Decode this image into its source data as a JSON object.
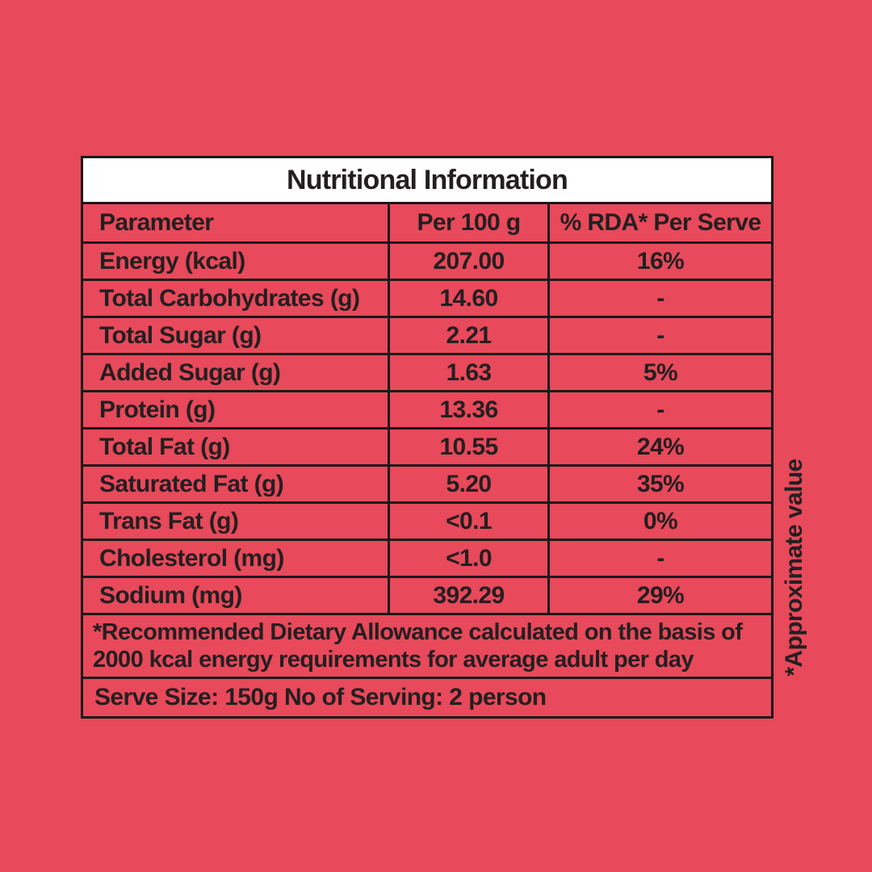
{
  "page": {
    "background_color": "#E8495B",
    "text_color": "#231F20",
    "border_color": "#1A1A1A",
    "title_background_color": "#FFFFFF"
  },
  "table": {
    "title": "Nutritional Information",
    "columns": [
      "Parameter",
      "Per 100 g",
      "% RDA* Per Serve"
    ],
    "rows": [
      {
        "parameter": "Energy (kcal)",
        "per_100g": "207.00",
        "rda_per_serve": "16%"
      },
      {
        "parameter": "Total Carbohydrates (g)",
        "per_100g": "14.60",
        "rda_per_serve": "-"
      },
      {
        "parameter": "Total Sugar (g)",
        "per_100g": "2.21",
        "rda_per_serve": "-"
      },
      {
        "parameter": "Added Sugar (g)",
        "per_100g": "1.63",
        "rda_per_serve": "5%"
      },
      {
        "parameter": "Protein (g)",
        "per_100g": "13.36",
        "rda_per_serve": "-"
      },
      {
        "parameter": "Total Fat (g)",
        "per_100g": "10.55",
        "rda_per_serve": "24%"
      },
      {
        "parameter": "Saturated Fat (g)",
        "per_100g": "5.20",
        "rda_per_serve": "35%"
      },
      {
        "parameter": "Trans Fat (g)",
        "per_100g": "<0.1",
        "rda_per_serve": "0%"
      },
      {
        "parameter": "Cholesterol (mg)",
        "per_100g": "<1.0",
        "rda_per_serve": "-"
      },
      {
        "parameter": "Sodium (mg)",
        "per_100g": "392.29",
        "rda_per_serve": "29%"
      }
    ],
    "footnote": "*Recommended Dietary Allowance calculated on the basis of 2000 kcal energy requirements for average  adult per day",
    "serve_info": "Serve Size: 150g No of Serving: 2 person"
  },
  "side_note": "*Approximate value"
}
